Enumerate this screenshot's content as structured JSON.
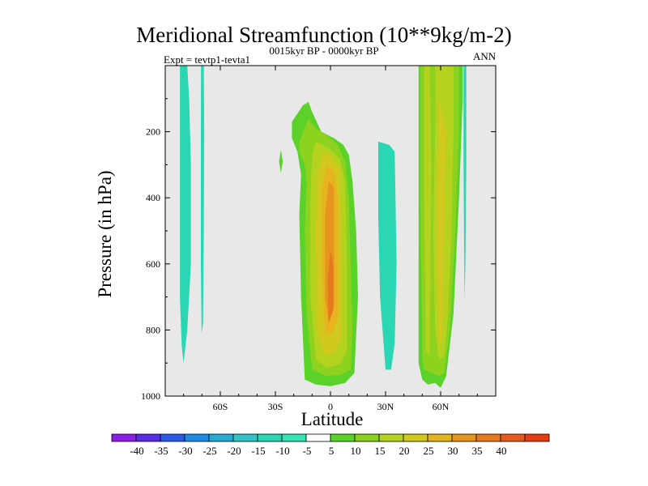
{
  "header": {
    "title": "Meridional Streamfunction (10**9kg/m-2)",
    "subtitle": "0015kyr BP - 0000kyr BP",
    "left_label": "Expt = tevtp1-tevta1",
    "right_label": "ANN"
  },
  "colors": {
    "background": "#e8e8e8",
    "bin_colors": [
      "#8a1ee6",
      "#5a2ce6",
      "#2a5ae6",
      "#1e8ce6",
      "#28aad2",
      "#32c4c8",
      "#2ad6b4",
      "#32e6b4",
      "#ffffff",
      "#5ad22a",
      "#8cd21e",
      "#b4d21e",
      "#d2c81e",
      "#e6b41e",
      "#e6961e",
      "#e6781e",
      "#e65a1e",
      "#e63c14"
    ]
  },
  "chart_data": {
    "type": "contour",
    "title": "Meridional Streamfunction (10**9kg/m-2)",
    "subtitle": "0015kyr BP - 0000kyr BP",
    "left_label": "Expt = tevtp1-tevta1",
    "right_label": "ANN",
    "xlabel": "Latitude",
    "ylabel": "Pressure (in hPa)",
    "xlim": [
      -90,
      90
    ],
    "ylim": [
      1000,
      0
    ],
    "x_ticks": [
      -60,
      -30,
      0,
      30,
      60
    ],
    "x_tick_labels": [
      "60S",
      "30S",
      "0",
      "30N",
      "60N"
    ],
    "y_ticks": [
      200,
      400,
      600,
      800,
      1000
    ],
    "y_tick_labels": [
      "200",
      "400",
      "600",
      "800",
      "1000"
    ],
    "colorbar_levels": [
      -40,
      -35,
      -30,
      -25,
      -20,
      -15,
      -10,
      -5,
      5,
      10,
      15,
      20,
      25,
      30,
      35,
      40
    ],
    "colorbar_labels": [
      "-40",
      "-35",
      "-30",
      "-25",
      "-20",
      "-15",
      "-10",
      "-5",
      "5",
      "10",
      "15",
      "20",
      "25",
      "30",
      "35",
      "40"
    ],
    "regions": [
      {
        "name": "cell-80S-narrow",
        "level": -10,
        "x": [
          -82,
          -78,
          -77,
          -76,
          -76,
          -78,
          -79,
          -80,
          -81,
          -82,
          -82
        ],
        "y": [
          0,
          0,
          100,
          300,
          600,
          800,
          850,
          900,
          850,
          700,
          300
        ]
      },
      {
        "name": "cell-70S-strip",
        "level": -10,
        "x": [
          -70.5,
          -69,
          -68.8,
          -69,
          -69.4,
          -70.2,
          -70.6,
          -70.6
        ],
        "y": [
          0,
          0,
          200,
          500,
          780,
          810,
          600,
          200
        ]
      },
      {
        "name": "tropical-cell-outer",
        "level": 5,
        "x": [
          -21,
          -15,
          -12,
          -10,
          -5,
          2,
          7,
          10,
          12,
          14,
          15,
          13,
          8,
          0,
          -8,
          -14,
          -16,
          -17,
          -16,
          -18,
          -21
        ],
        "y": [
          170,
          120,
          110,
          140,
          200,
          220,
          240,
          270,
          350,
          500,
          700,
          930,
          960,
          970,
          965,
          950,
          700,
          450,
          330,
          260,
          220
        ]
      },
      {
        "name": "tropical-cell-10",
        "level": 10,
        "x": [
          -17,
          -12,
          -8,
          -2,
          4,
          8,
          10,
          11,
          12,
          11,
          6,
          -2,
          -10,
          -13,
          -14,
          -13,
          -14,
          -17
        ],
        "y": [
          230,
          160,
          190,
          210,
          240,
          290,
          400,
          600,
          800,
          920,
          935,
          940,
          920,
          750,
          500,
          360,
          300,
          260
        ]
      },
      {
        "name": "tropical-cell-15",
        "level": 15,
        "x": [
          -8,
          -1,
          5,
          8,
          9,
          9,
          5,
          -2,
          -8,
          -11,
          -11,
          -10
        ],
        "y": [
          230,
          250,
          280,
          350,
          600,
          860,
          905,
          915,
          890,
          700,
          400,
          270
        ]
      },
      {
        "name": "tropical-cell-20",
        "level": 20,
        "x": [
          -4,
          1,
          5,
          6,
          6,
          2,
          -4,
          -7,
          -8,
          -7
        ],
        "y": [
          260,
          280,
          310,
          500,
          820,
          870,
          875,
          800,
          500,
          330
        ]
      },
      {
        "name": "tropical-cell-25",
        "level": 25,
        "x": [
          -2,
          2,
          4,
          4,
          1,
          -3,
          -5,
          -5
        ],
        "y": [
          300,
          320,
          400,
          760,
          810,
          810,
          600,
          380
        ]
      },
      {
        "name": "tropical-cell-30",
        "level": 30,
        "x": [
          -1,
          2,
          2,
          -1,
          -3,
          -3
        ],
        "y": [
          350,
          370,
          730,
          770,
          700,
          450
        ]
      },
      {
        "name": "tropical-cell-35",
        "level": 35,
        "x": [
          0,
          1.5,
          1.5,
          -1,
          -1.5
        ],
        "y": [
          560,
          600,
          740,
          780,
          640
        ]
      },
      {
        "name": "small-blob-27S",
        "level": 5,
        "x": [
          -27,
          -26,
          -27,
          -28
        ],
        "y": [
          255,
          290,
          325,
          290
        ]
      },
      {
        "name": "cell-30N",
        "level": -10,
        "x": [
          26,
          32,
          35,
          36,
          35,
          33,
          30,
          27,
          26,
          26
        ],
        "y": [
          230,
          240,
          260,
          600,
          840,
          920,
          920,
          700,
          450,
          300
        ]
      },
      {
        "name": "cell-60N-outer",
        "level": 5,
        "x": [
          48,
          72,
          72,
          70,
          67,
          63,
          60,
          57,
          53,
          50,
          48,
          48
        ],
        "y": [
          0,
          0,
          100,
          400,
          750,
          940,
          975,
          960,
          965,
          950,
          900,
          400
        ]
      },
      {
        "name": "cell-60N-10",
        "level": 10,
        "x": [
          49,
          70,
          70,
          68,
          65,
          62,
          59,
          55,
          51,
          50,
          49
        ],
        "y": [
          0,
          0,
          200,
          500,
          800,
          930,
          940,
          930,
          920,
          880,
          400
        ]
      },
      {
        "name": "cell-60N-15",
        "level": 15,
        "x": [
          51,
          54,
          55,
          54,
          52,
          51
        ],
        "y": [
          0,
          0,
          300,
          880,
          860,
          400
        ]
      },
      {
        "name": "cell-60N-15b",
        "level": 15,
        "x": [
          57,
          67,
          67,
          66,
          64,
          62,
          59,
          57,
          56,
          57
        ],
        "y": [
          0,
          0,
          200,
          500,
          750,
          880,
          890,
          800,
          500,
          200
        ]
      },
      {
        "name": "cell-60N-20",
        "level": 20,
        "x": [
          59,
          63,
          62,
          61,
          59,
          58
        ],
        "y": [
          100,
          200,
          500,
          820,
          850,
          500
        ]
      },
      {
        "name": "strip-74N",
        "level": -10,
        "x": [
          72.5,
          74,
          74,
          73.5,
          73,
          72.5
        ],
        "y": [
          0,
          0,
          300,
          600,
          710,
          300
        ]
      }
    ]
  },
  "colorbar_ticks": [
    "-40",
    "-35",
    "-30",
    "-25",
    "-20",
    "-15",
    "-10",
    "-5",
    "5",
    "10",
    "15",
    "20",
    "25",
    "30",
    "35",
    "40"
  ]
}
